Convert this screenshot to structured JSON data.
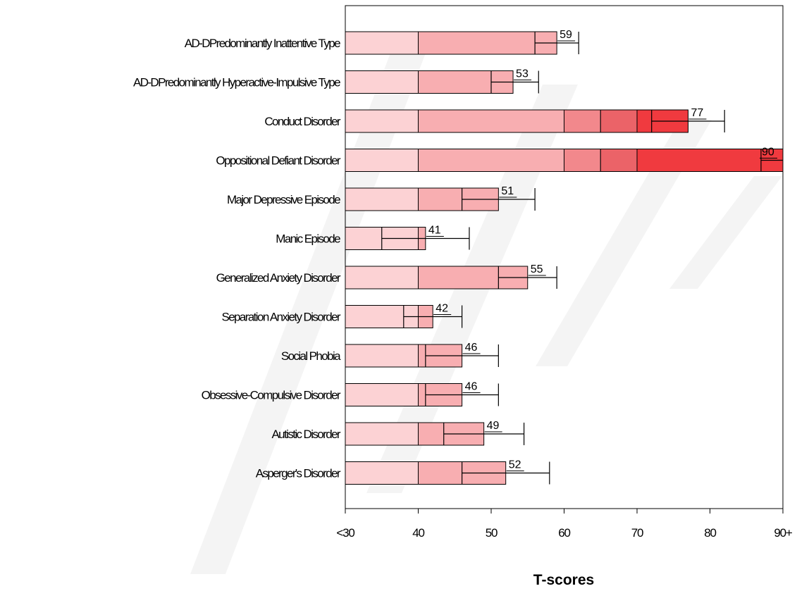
{
  "chart_data": {
    "type": "bar",
    "orientation": "horizontal",
    "title": "",
    "xlabel": "T-scores",
    "ylabel": "",
    "xlim": [
      30,
      90
    ],
    "x_ticks": [
      30,
      40,
      50,
      60,
      70,
      80,
      90
    ],
    "x_tick_labels": [
      "<30",
      "40",
      "50",
      "60",
      "70",
      "80",
      "90+"
    ],
    "grid": false,
    "band_edges": [
      40,
      60,
      65,
      70
    ],
    "band_colors": [
      "#fcd2d4",
      "#f8aeb1",
      "#f2888c",
      "#eb6368",
      "#f03a3f"
    ],
    "categories": [
      "AD-DPredominantly Inattentive Type",
      "AD-DPredominantly Hyperactive-Impulsive Type",
      "Conduct Disorder",
      "Oppositional Defiant Disorder",
      "Major Depressive Episode",
      "Manic Episode",
      "Generalized Anxiety Disorder",
      "Separation Anxiety Disorder",
      "Social Phobia",
      "Obsessive-Compulsive Disorder",
      "Autistic Disorder",
      "Asperger's Disorder"
    ],
    "values": [
      59,
      53,
      77,
      90,
      51,
      41,
      55,
      42,
      46,
      46,
      49,
      52
    ],
    "value_labels": [
      "59",
      "53",
      "77",
      "90",
      "51",
      "41",
      "55",
      "42",
      "46",
      "46",
      "49",
      "52"
    ],
    "error_low": [
      56,
      50,
      72,
      87,
      46,
      35,
      51,
      38,
      41,
      41,
      43.5,
      46
    ],
    "error_high": [
      62,
      56.5,
      82,
      93,
      56,
      47,
      59,
      46,
      51,
      51,
      54.5,
      58
    ]
  },
  "watermark": "SAMPLE"
}
